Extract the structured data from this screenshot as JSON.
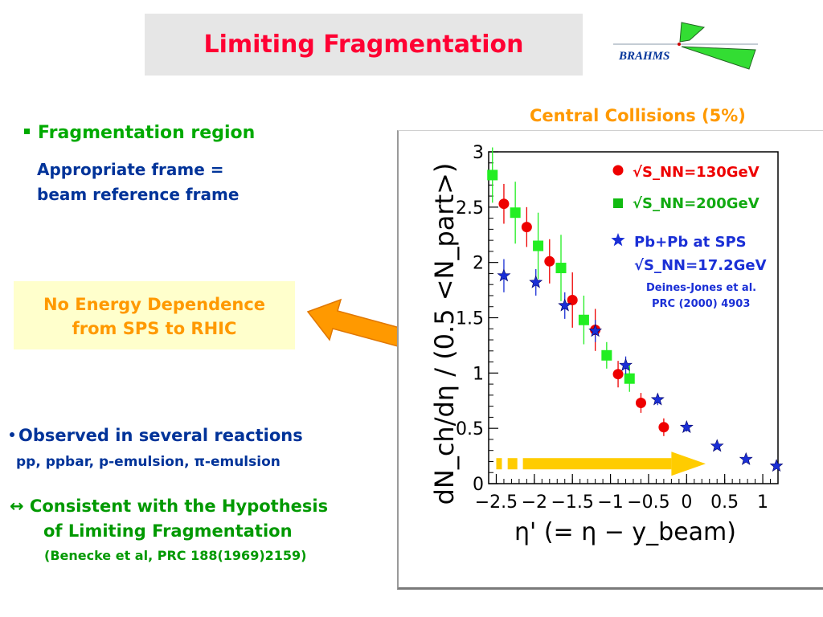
{
  "slide": {
    "title": "Limiting Fragmentation",
    "logo_text": "BRAHMS",
    "chart_caption": "Central Collisions (5%)",
    "bullet_fragmentation": "Fragmentation region",
    "frame_line1": "Appropriate frame =",
    "frame_line2": "beam reference frame",
    "no_dep_line1": "No Energy Dependence",
    "no_dep_line2": "from SPS to RHIC",
    "observed": "Observed in several reactions",
    "reactions": "pp, ppbar, p-emulsion, π-emulsion",
    "consistent_symbol": "↔",
    "consistent_line1": "Consistent with the Hypothesis",
    "consistent_line2": "of Limiting Fragmentation",
    "reference": "(Benecke et al, PRC 188(1969)2159)"
  },
  "colors": {
    "title_red": "#ff0033",
    "caption_orange": "#ff9900",
    "green_text": "#00aa00",
    "blue_text": "#003399",
    "series_130": "#ee0000",
    "series_200": "#22ee22",
    "series_sps": "#1a2fd6",
    "arrow_yellow": "#ffcc00"
  },
  "chart_data": {
    "type": "scatter",
    "xlabel": "η' (= η − y_beam)",
    "ylabel": "dN_ch/dη / (0.5 <N_part>)",
    "xlim": [
      -2.6,
      1.2
    ],
    "ylim": [
      0,
      3
    ],
    "xticks": [
      -2.5,
      -2,
      -1.5,
      -1,
      -0.5,
      0,
      0.5,
      1
    ],
    "xtick_labels": [
      "−2.5",
      "−2",
      "−1.5",
      "−1",
      "−0.5",
      "0",
      "0.5",
      "1"
    ],
    "yticks": [
      0,
      0.5,
      1,
      1.5,
      2,
      2.5,
      3
    ],
    "ytick_labels": [
      "0",
      "0.5",
      "1",
      "1.5",
      "2",
      "2.5",
      "3"
    ],
    "series": [
      {
        "name": "√S_NN=130GeV",
        "marker": "circle",
        "x": [
          -2.4,
          -2.1,
          -1.8,
          -1.5,
          -1.2,
          -0.9,
          -0.6,
          -0.3
        ],
        "y": [
          2.53,
          2.32,
          2.01,
          1.66,
          1.39,
          0.99,
          0.73,
          0.51
        ],
        "err": [
          0.18,
          0.18,
          0.2,
          0.25,
          0.19,
          0.12,
          0.09,
          0.08
        ]
      },
      {
        "name": "√S_NN=200GeV",
        "marker": "square",
        "x": [
          -2.55,
          -2.25,
          -1.95,
          -1.65,
          -1.35,
          -1.05,
          -0.75
        ],
        "y": [
          2.79,
          2.45,
          2.15,
          1.95,
          1.48,
          1.16,
          0.95
        ],
        "err": [
          0.25,
          0.28,
          0.3,
          0.3,
          0.22,
          0.12,
          0.12
        ]
      },
      {
        "name": "Pb+Pb at SPS",
        "name_line2": "√S_NN=17.2GeV",
        "marker": "star",
        "x": [
          -2.4,
          -1.98,
          -1.6,
          -1.2,
          -0.8,
          -0.38,
          0.0,
          0.4,
          0.78,
          1.18
        ],
        "y": [
          1.88,
          1.82,
          1.61,
          1.38,
          1.07,
          0.76,
          0.51,
          0.34,
          0.22,
          0.16
        ],
        "err": [
          0.15,
          0.12,
          0.12,
          0.1,
          0.08,
          0.05,
          0.04,
          0.03,
          0.02,
          0.02
        ]
      }
    ],
    "legend": {
      "placement": "top-right",
      "sps_reference_line1": "Deines-Jones et al.",
      "sps_reference_line2": "PRC (2000) 4903"
    }
  }
}
